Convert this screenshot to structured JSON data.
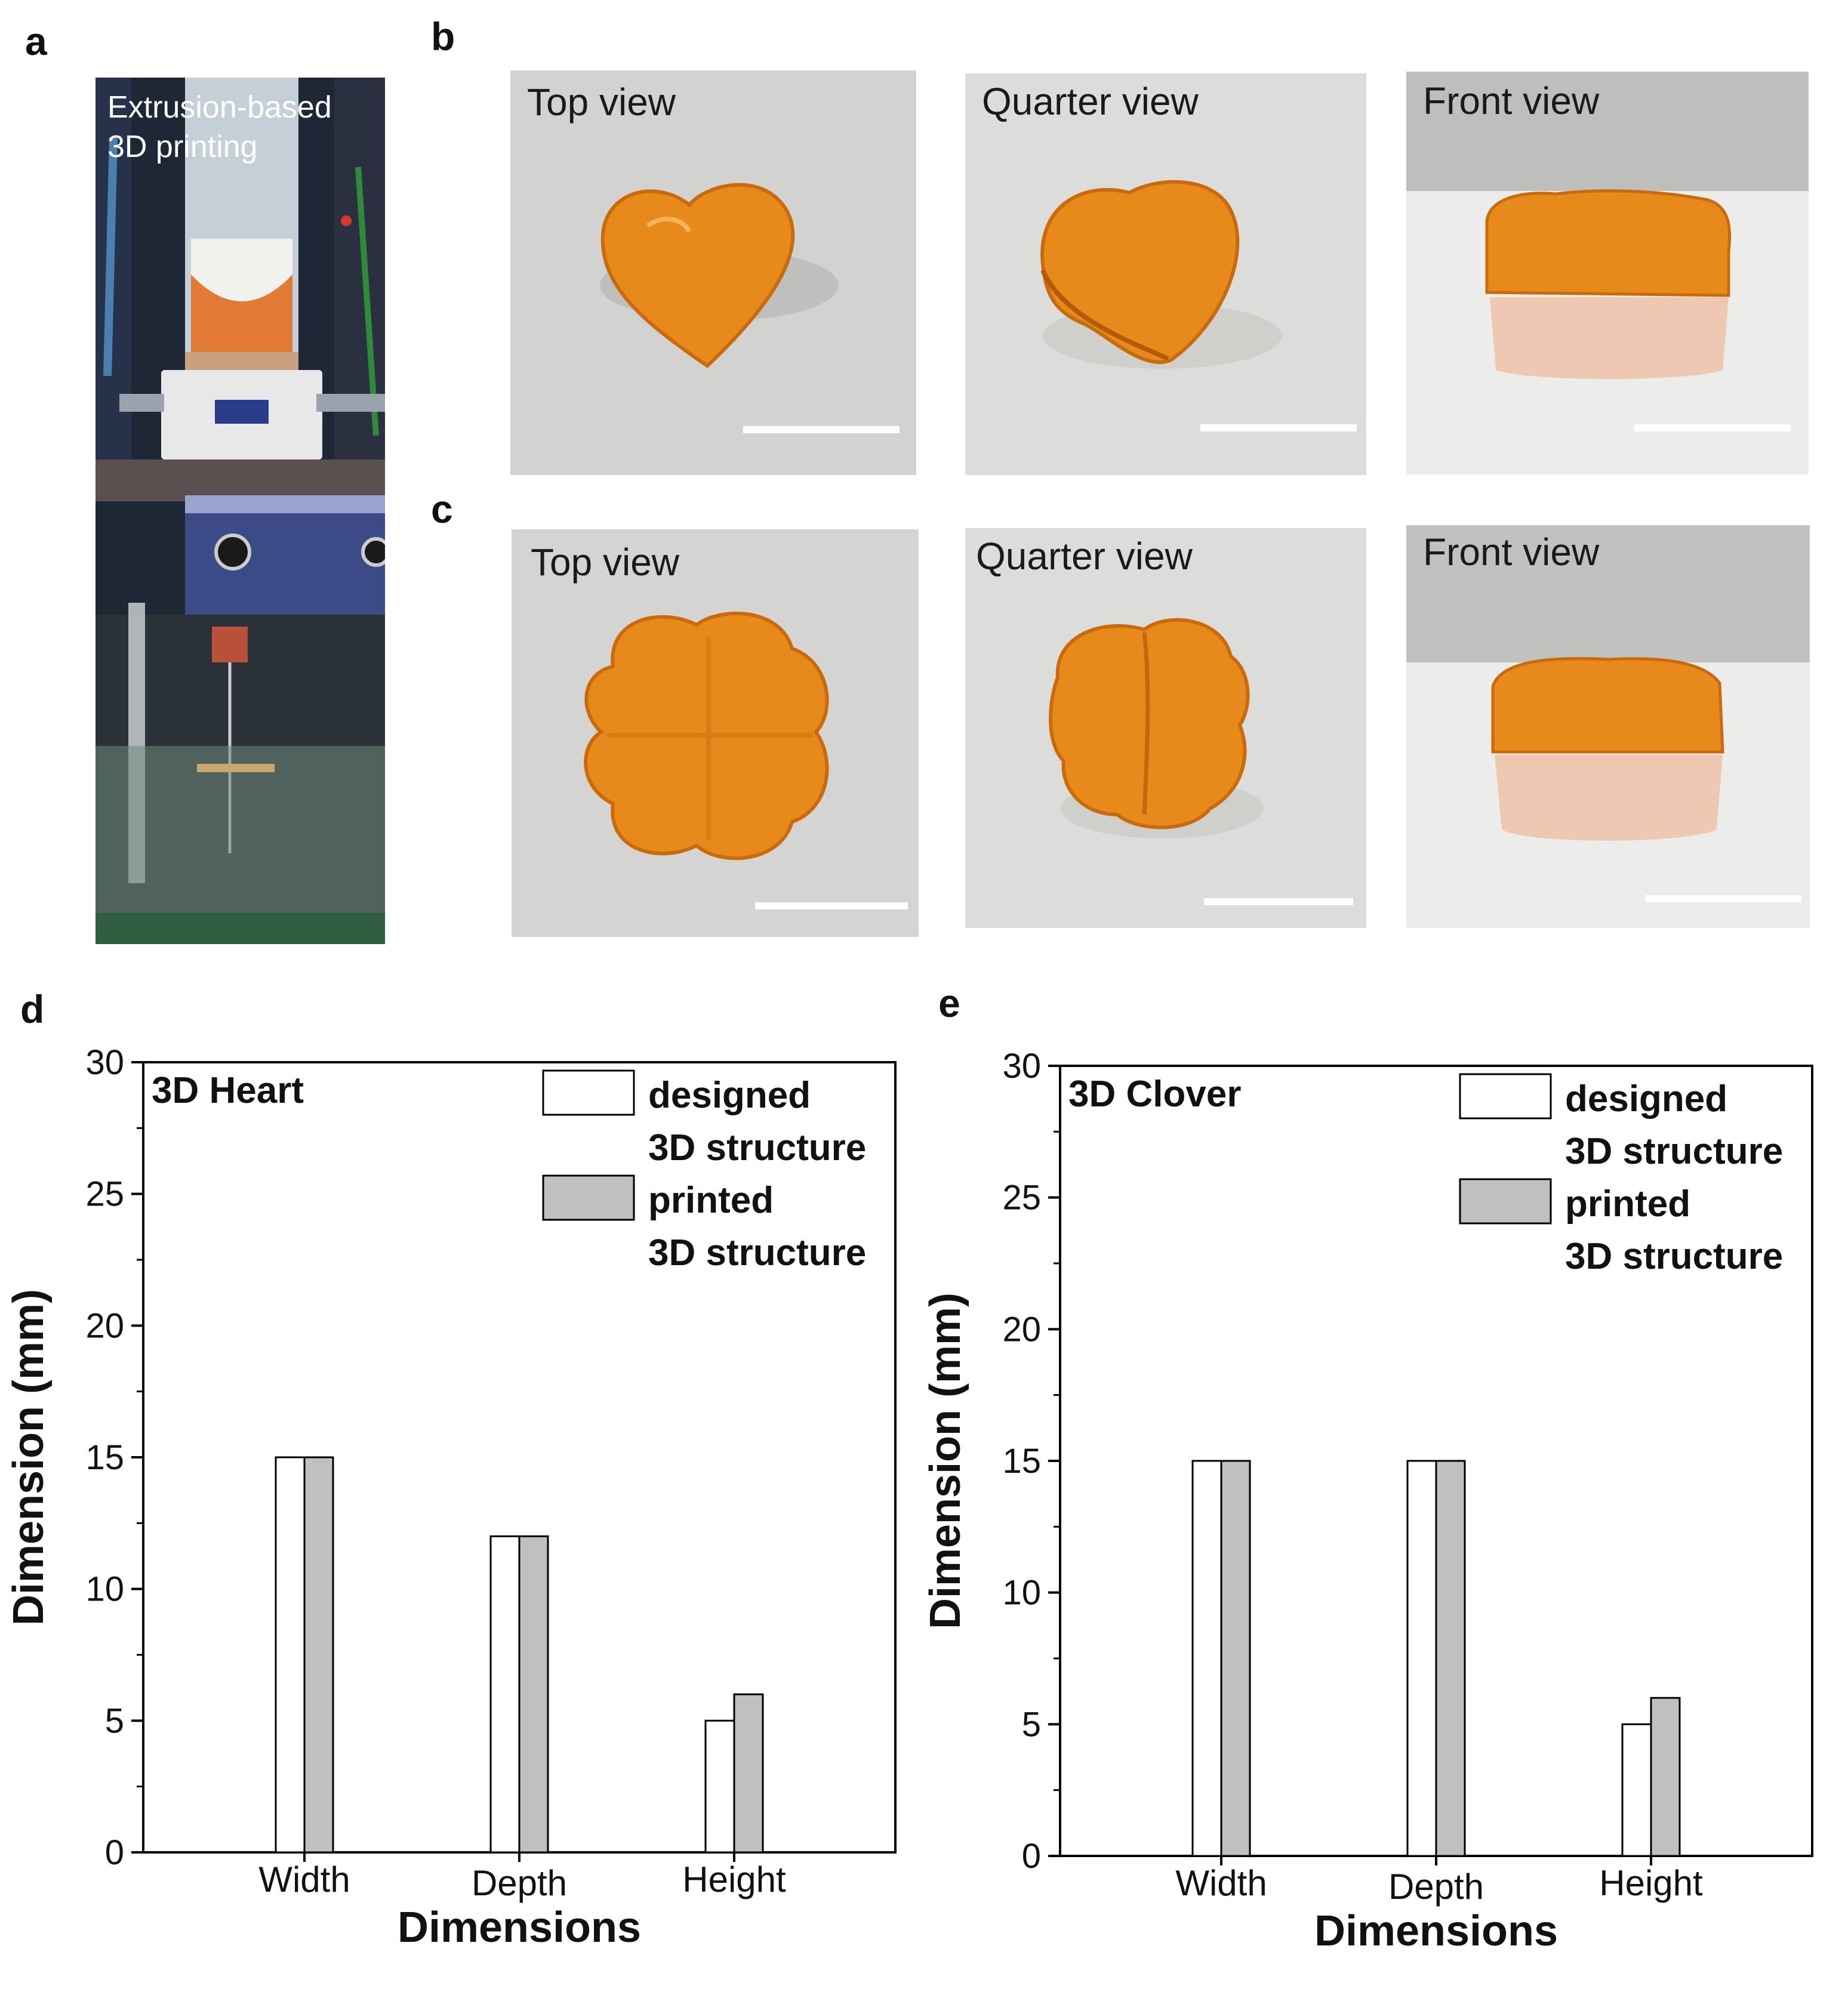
{
  "panel_letters": {
    "a": "a",
    "b": "b",
    "c": "c",
    "d": "d",
    "e": "e"
  },
  "panel_a": {
    "caption_line1": "Extrusion-based",
    "caption_line2": "3D printing"
  },
  "panel_b": {
    "labels": [
      "Top view",
      "Quarter view",
      "Front view"
    ]
  },
  "panel_c": {
    "labels": [
      "Top view",
      "Quarter view",
      "Front view"
    ]
  },
  "colors": {
    "gel_orange": "#e8891c",
    "gel_dark": "#c96a0c",
    "designed_fill": "#ffffff",
    "printed_fill": "#c0c0c0",
    "axis": "#000000"
  },
  "chart_data": [
    {
      "type": "bar",
      "title": "3D Heart",
      "categories": [
        "Width",
        "Depth",
        "Height"
      ],
      "series": [
        {
          "name": "designed 3D structure",
          "legend_line1": "designed",
          "legend_line2": "3D structure",
          "values": [
            15,
            12,
            5
          ]
        },
        {
          "name": "printed 3D structure",
          "legend_line1": "printed",
          "legend_line2": "3D structure",
          "values": [
            15,
            12,
            6
          ]
        }
      ],
      "xlabel": "Dimensions",
      "ylabel": "Dimension (mm)",
      "ylim": [
        0,
        30
      ],
      "yticks": [
        "0",
        "5",
        "10",
        "15",
        "20",
        "25",
        "30"
      ],
      "legend_position": "top-right"
    },
    {
      "type": "bar",
      "title": "3D Clover",
      "categories": [
        "Width",
        "Depth",
        "Height"
      ],
      "series": [
        {
          "name": "designed 3D structure",
          "legend_line1": "designed",
          "legend_line2": "3D structure",
          "values": [
            15,
            15,
            5
          ]
        },
        {
          "name": "printed 3D structure",
          "legend_line1": "printed",
          "legend_line2": "3D structure",
          "values": [
            15,
            15,
            6
          ]
        }
      ],
      "xlabel": "Dimensions",
      "ylabel": "Dimension (mm)",
      "ylim": [
        0,
        30
      ],
      "yticks": [
        "0",
        "5",
        "10",
        "15",
        "20",
        "25",
        "30"
      ],
      "legend_position": "top-right"
    }
  ]
}
